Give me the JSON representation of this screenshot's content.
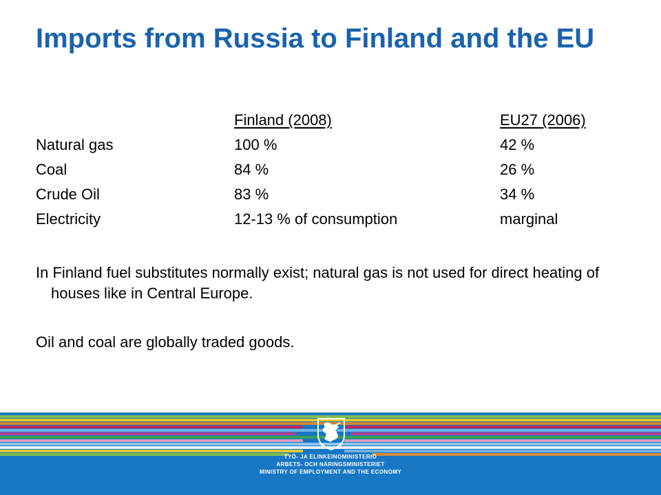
{
  "title": "Imports from Russia to Finland and the EU",
  "table": {
    "headers": [
      "",
      "Finland (2008)",
      "EU27 (2006)"
    ],
    "rows": [
      [
        "Natural gas",
        "100 %",
        "42 %"
      ],
      [
        "Coal",
        "84 %",
        "26 %"
      ],
      [
        "Crude Oil",
        "83 %",
        "34 %"
      ],
      [
        "Electricity",
        "12-13 % of consumption",
        "marginal"
      ]
    ]
  },
  "paragraphs": {
    "substitutes": "In Finland fuel substitutes normally exist; natural gas is not used for direct heating of houses like in Central Europe.",
    "trade": "Oil and coal are globally traded goods."
  },
  "footer": {
    "background_color": "#1777c4",
    "stripe_colors": [
      "#8cc63f",
      "#f7d21e",
      "#e98a27",
      "#d21f55",
      "#7ab7e6",
      "#c23a8e",
      "#3aa64a",
      "#f2a1c1",
      "#9fd0f0",
      "#ffffff"
    ],
    "logo_icon": "finnish-lion-crest-icon",
    "ministry_lines": [
      "TYÖ- JA ELINKEINOMINISTERIÖ",
      "ARBETS- OCH NÄRINGSMINISTERIET",
      "MINISTRY OF EMPLOYMENT AND THE ECONOMY"
    ]
  }
}
